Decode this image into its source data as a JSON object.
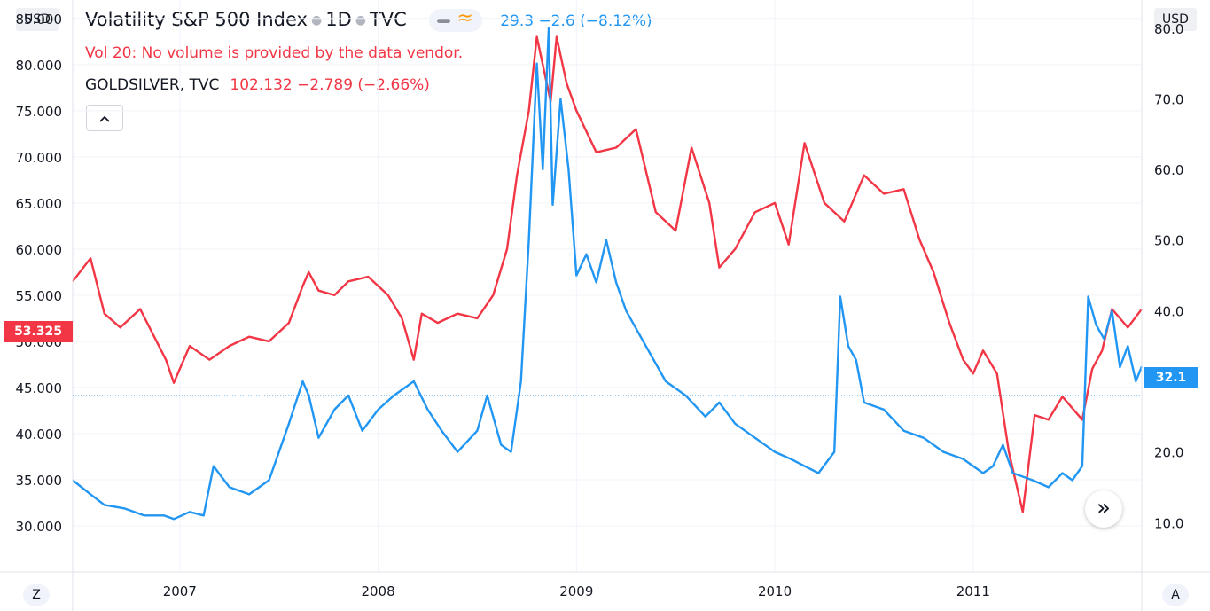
{
  "header": {
    "title": "Volatility S&P 500 Index",
    "interval": "1D",
    "exchange": "TVC",
    "quote": "29.3 −2.6 (−8.12%)",
    "volume_note": "Vol 20: No volume is provided by the data vendor.",
    "compare_name": "GOLDSILVER, TVC",
    "compare_quote": "102.132 −2.789 (−2.66%)",
    "collapse_icon": "chevron-up-icon"
  },
  "axes": {
    "left_currency": "USD",
    "right_currency": "USD",
    "left_badge": "53.325",
    "right_badge": "32.1",
    "corner_left": "Z",
    "corner_right": "A"
  },
  "colors": {
    "vix": "#2196f3",
    "goldsilver": "#f23645"
  },
  "chart_data": {
    "type": "line",
    "x_ticks": [
      "2007",
      "2008",
      "2009",
      "2010",
      "2011"
    ],
    "left_axis": {
      "currency": "USD",
      "ylim": [
        25.0,
        87.0
      ],
      "ticks": [
        "30.000",
        "35.000",
        "40.000",
        "45.000",
        "50.000",
        "55.000",
        "60.000",
        "65.000",
        "70.000",
        "75.000",
        "80.000",
        "85.000"
      ]
    },
    "right_axis": {
      "currency": "USD",
      "ylim": [
        3.0,
        84.0
      ],
      "ticks": [
        "10.0",
        "20.0",
        "30.0",
        "40.0",
        "50.0",
        "60.0",
        "70.0",
        "80.0"
      ]
    },
    "x_range": [
      2006.46,
      2011.85
    ],
    "grid": true,
    "series": [
      {
        "name": "GOLDSILVER, TVC",
        "axis": "left",
        "color": "#f23645",
        "last_label": "53.325",
        "x": [
          2006.46,
          2006.55,
          2006.62,
          2006.7,
          2006.8,
          2006.93,
          2006.97,
          2007.05,
          2007.15,
          2007.25,
          2007.35,
          2007.45,
          2007.55,
          2007.62,
          2007.65,
          2007.7,
          2007.78,
          2007.85,
          2007.95,
          2008.05,
          2008.12,
          2008.18,
          2008.22,
          2008.3,
          2008.4,
          2008.5,
          2008.58,
          2008.65,
          2008.7,
          2008.76,
          2008.8,
          2008.84,
          2008.87,
          2008.9,
          2008.95,
          2009.0,
          2009.1,
          2009.2,
          2009.3,
          2009.4,
          2009.5,
          2009.58,
          2009.67,
          2009.72,
          2009.8,
          2009.9,
          2010.0,
          2010.07,
          2010.15,
          2010.25,
          2010.35,
          2010.45,
          2010.55,
          2010.65,
          2010.73,
          2010.8,
          2010.88,
          2010.95,
          2011.0,
          2011.05,
          2011.12,
          2011.18,
          2011.25,
          2011.31,
          2011.38,
          2011.45,
          2011.55,
          2011.6,
          2011.65,
          2011.7,
          2011.78,
          2011.85
        ],
        "y": [
          56.5,
          59.0,
          53.0,
          51.5,
          53.5,
          48.0,
          45.5,
          49.5,
          48.0,
          49.5,
          50.5,
          50.0,
          52.0,
          56.0,
          57.5,
          55.5,
          55.0,
          56.5,
          57.0,
          55.0,
          52.5,
          48.0,
          53.0,
          52.0,
          53.0,
          52.5,
          55.0,
          60.0,
          68.0,
          75.0,
          83.0,
          79.0,
          76.0,
          83.0,
          78.0,
          75.0,
          70.5,
          71.0,
          73.0,
          64.0,
          62.0,
          71.0,
          65.0,
          58.0,
          60.0,
          64.0,
          65.0,
          60.5,
          71.5,
          65.0,
          63.0,
          68.0,
          66.0,
          66.5,
          61.0,
          57.5,
          52.0,
          48.0,
          46.5,
          49.0,
          46.5,
          38.0,
          31.5,
          42.0,
          41.5,
          44.0,
          41.5,
          47.0,
          49.0,
          53.5,
          51.5,
          53.5
        ]
      },
      {
        "name": "Volatility S&P 500 Index",
        "axis": "right",
        "color": "#2196f3",
        "last_label": "32.1",
        "x": [
          2006.46,
          2006.55,
          2006.62,
          2006.72,
          2006.82,
          2006.92,
          2006.97,
          2007.05,
          2007.12,
          2007.17,
          2007.25,
          2007.35,
          2007.45,
          2007.55,
          2007.62,
          2007.65,
          2007.7,
          2007.78,
          2007.85,
          2007.92,
          2008.0,
          2008.08,
          2008.18,
          2008.25,
          2008.32,
          2008.4,
          2008.5,
          2008.55,
          2008.62,
          2008.67,
          2008.72,
          2008.76,
          2008.8,
          2008.83,
          2008.86,
          2008.88,
          2008.92,
          2008.96,
          2009.0,
          2009.05,
          2009.1,
          2009.15,
          2009.2,
          2009.25,
          2009.35,
          2009.45,
          2009.55,
          2009.65,
          2009.72,
          2009.8,
          2009.9,
          2010.0,
          2010.08,
          2010.15,
          2010.22,
          2010.3,
          2010.33,
          2010.37,
          2010.41,
          2010.45,
          2010.55,
          2010.65,
          2010.75,
          2010.85,
          2010.95,
          2011.0,
          2011.05,
          2011.1,
          2011.15,
          2011.2,
          2011.3,
          2011.38,
          2011.45,
          2011.5,
          2011.55,
          2011.58,
          2011.62,
          2011.66,
          2011.7,
          2011.74,
          2011.78,
          2011.82,
          2011.85
        ],
        "y": [
          16.0,
          14.0,
          12.5,
          12.0,
          11.0,
          11.0,
          10.5,
          11.5,
          11.0,
          18.0,
          15.0,
          14.0,
          16.0,
          24.0,
          30.0,
          28.0,
          22.0,
          26.0,
          28.0,
          23.0,
          26.0,
          28.0,
          30.0,
          26.0,
          23.0,
          20.0,
          23.0,
          28.0,
          21.0,
          20.0,
          30.0,
          50.0,
          75.0,
          60.0,
          80.0,
          55.0,
          70.0,
          60.0,
          45.0,
          48.0,
          44.0,
          50.0,
          44.0,
          40.0,
          35.0,
          30.0,
          28.0,
          25.0,
          27.0,
          24.0,
          22.0,
          20.0,
          19.0,
          18.0,
          17.0,
          20.0,
          42.0,
          35.0,
          33.0,
          27.0,
          26.0,
          23.0,
          22.0,
          20.0,
          19.0,
          18.0,
          17.0,
          18.0,
          21.0,
          17.0,
          16.0,
          15.0,
          17.0,
          16.0,
          18.0,
          42.0,
          38.0,
          36.0,
          40.0,
          32.0,
          35.0,
          30.0,
          32.1
        ]
      }
    ]
  }
}
